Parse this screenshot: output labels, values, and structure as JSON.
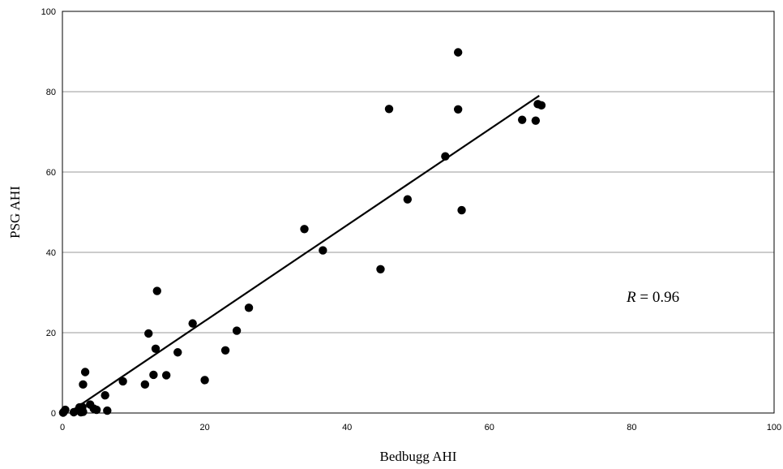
{
  "chart_data": {
    "type": "scatter",
    "title": "",
    "xlabel": "Bedbugg AHI",
    "ylabel": "PSG AHI",
    "xlim": [
      0,
      100
    ],
    "ylim": [
      0,
      100
    ],
    "xticks": [
      0,
      20,
      40,
      60,
      80,
      100
    ],
    "yticks": [
      0,
      20,
      40,
      60,
      80,
      100
    ],
    "grid": "horizontal",
    "annotation": {
      "italic": "R",
      "rest": " = 0.96"
    },
    "trendline": {
      "x": [
        1.5,
        67
      ],
      "y": [
        0.8,
        79
      ]
    },
    "points": [
      [
        0.2,
        0.3
      ],
      [
        0.4,
        0.8
      ],
      [
        0.1,
        0.1
      ],
      [
        1.6,
        0.2
      ],
      [
        2.4,
        1.4
      ],
      [
        2.6,
        0.2
      ],
      [
        2.9,
        0.3
      ],
      [
        2.8,
        1.5
      ],
      [
        2.9,
        7.1
      ],
      [
        3.2,
        10.2
      ],
      [
        3.9,
        2.1
      ],
      [
        4.4,
        1.1
      ],
      [
        4.8,
        0.8
      ],
      [
        6.0,
        4.4
      ],
      [
        6.3,
        0.6
      ],
      [
        8.5,
        7.9
      ],
      [
        11.6,
        7.1
      ],
      [
        12.1,
        19.8
      ],
      [
        12.8,
        9.5
      ],
      [
        13.1,
        16.0
      ],
      [
        13.3,
        30.4
      ],
      [
        14.6,
        9.4
      ],
      [
        16.2,
        15.1
      ],
      [
        18.3,
        22.3
      ],
      [
        20.0,
        8.2
      ],
      [
        22.9,
        15.6
      ],
      [
        24.5,
        20.5
      ],
      [
        26.2,
        26.2
      ],
      [
        34.0,
        45.8
      ],
      [
        36.6,
        40.5
      ],
      [
        44.7,
        35.8
      ],
      [
        45.9,
        75.7
      ],
      [
        48.5,
        53.2
      ],
      [
        53.8,
        63.9
      ],
      [
        55.6,
        89.8
      ],
      [
        55.6,
        75.6
      ],
      [
        56.1,
        50.5
      ],
      [
        64.6,
        73.0
      ],
      [
        66.5,
        72.8
      ],
      [
        66.8,
        76.9
      ],
      [
        67.3,
        76.6
      ]
    ]
  }
}
